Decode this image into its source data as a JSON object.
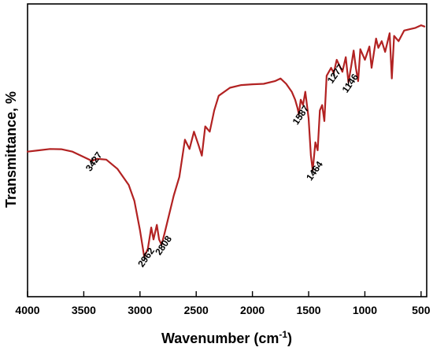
{
  "chart_data": {
    "type": "line",
    "title": "",
    "xlabel": "Wavenumber (cm",
    "xlabel_superscript": "-1",
    "xlabel_suffix": ")",
    "ylabel": "Transmittance, %",
    "xlim": [
      4000,
      450
    ],
    "x_reversed": true,
    "y_ticks_visible": false,
    "grid": false,
    "legend": "none",
    "x_ticks": [
      4000,
      3500,
      3000,
      2500,
      2000,
      1500,
      1000,
      500
    ],
    "x_tick_labels": [
      "4000",
      "3500",
      "3000",
      "2500",
      "2000",
      "1500",
      "1000",
      "500"
    ],
    "line_color": "#b22222",
    "series": [
      {
        "x": [
          4000,
          3900,
          3800,
          3700,
          3600,
          3500,
          3427,
          3380,
          3300,
          3200,
          3100,
          3050,
          3000,
          2962,
          2930,
          2900,
          2880,
          2850,
          2830,
          2808,
          2780,
          2700,
          2650,
          2600,
          2560,
          2520,
          2480,
          2450,
          2420,
          2380,
          2340,
          2300,
          2200,
          2100,
          2000,
          1900,
          1800,
          1750,
          1700,
          1650,
          1620,
          1600,
          1587,
          1570,
          1550,
          1530,
          1500,
          1480,
          1464,
          1440,
          1420,
          1400,
          1380,
          1360,
          1340,
          1300,
          1277,
          1250,
          1200,
          1170,
          1146,
          1120,
          1100,
          1080,
          1060,
          1040,
          1000,
          960,
          940,
          900,
          880,
          850,
          820,
          780,
          760,
          740,
          700,
          650,
          600,
          550,
          500,
          470
        ],
        "y": [
          54.5,
          55.0,
          55.5,
          55.4,
          54.5,
          52.5,
          51.0,
          51.8,
          51.5,
          48.0,
          42.0,
          36.0,
          25.0,
          15.0,
          18.0,
          26.0,
          21.5,
          27.0,
          21.5,
          19.5,
          24.0,
          38.0,
          45.0,
          59.0,
          55.5,
          62.0,
          57.0,
          53.0,
          64.0,
          62.0,
          70.0,
          75.5,
          78.5,
          79.5,
          79.8,
          80.0,
          81.0,
          82.0,
          80.0,
          77.0,
          74.0,
          71.0,
          68.5,
          74.0,
          72.0,
          77.0,
          67.0,
          53.0,
          47.5,
          58.0,
          55.0,
          70.0,
          72.0,
          66.0,
          83.0,
          86.0,
          84.0,
          89.0,
          84.5,
          90.0,
          80.5,
          87.0,
          92.5,
          86.0,
          81.0,
          93.0,
          89.0,
          94.0,
          86.0,
          97.0,
          93.5,
          96.0,
          92.0,
          99.0,
          82.0,
          98.0,
          96.0,
          100.0,
          100.5,
          101.0,
          102.0,
          101.5
        ]
      }
    ],
    "y_domain_estimate": [
      0,
      110
    ],
    "annotations": [
      {
        "label": "3427",
        "x": 3427,
        "y": 51.0
      },
      {
        "label": "2962",
        "x": 2962,
        "y": 15.0
      },
      {
        "label": "2808",
        "x": 2808,
        "y": 19.5
      },
      {
        "label": "1587",
        "x": 1587,
        "y": 68.5
      },
      {
        "label": "1464",
        "x": 1464,
        "y": 47.5
      },
      {
        "label": "1277",
        "x": 1277,
        "y": 84.0
      },
      {
        "label": "1146",
        "x": 1146,
        "y": 80.5
      }
    ]
  }
}
